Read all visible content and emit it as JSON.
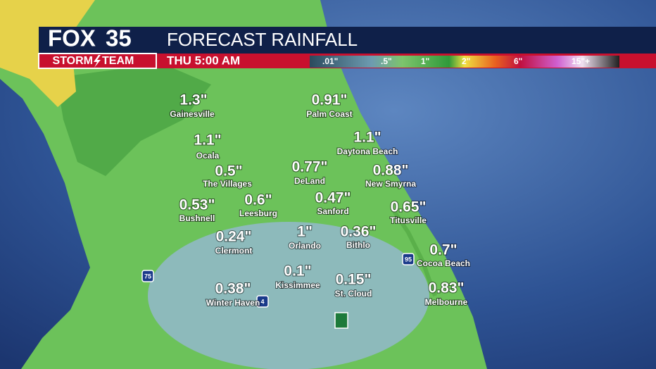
{
  "header": {
    "logo": {
      "brand": "FOX",
      "channel": "35",
      "team_left": "STORM",
      "team_right": "TEAM"
    },
    "title": "FORECAST RAINFALL",
    "time": "THU 5:00 AM",
    "legend": [
      ".01\"",
      ".5\"",
      "1\"",
      "2\"",
      "6\"",
      "15\"+"
    ]
  },
  "cities": [
    {
      "name": "Gainesville",
      "amount": "1.3\""
    },
    {
      "name": "Palm Coast",
      "amount": "0.91\""
    },
    {
      "name": "Ocala",
      "amount": "1.1\""
    },
    {
      "name": "Daytona Beach",
      "amount": "1.1\""
    },
    {
      "name": "The Villages",
      "amount": "0.5\""
    },
    {
      "name": "DeLand",
      "amount": "0.77\""
    },
    {
      "name": "New Smyrna",
      "amount": "0.88\""
    },
    {
      "name": "Bushnell",
      "amount": "0.53\""
    },
    {
      "name": "Leesburg",
      "amount": "0.6\""
    },
    {
      "name": "Sanford",
      "amount": "0.47\""
    },
    {
      "name": "Titusville",
      "amount": "0.65\""
    },
    {
      "name": "Clermont",
      "amount": "0.24\""
    },
    {
      "name": "Orlando",
      "amount": "1\""
    },
    {
      "name": "Bithlo",
      "amount": "0.36\""
    },
    {
      "name": "Cocoa Beach",
      "amount": "0.7\""
    },
    {
      "name": "Kissimmee",
      "amount": "0.1\""
    },
    {
      "name": "St. Cloud",
      "amount": "0.15\""
    },
    {
      "name": "Winter Haven",
      "amount": "0.38\""
    },
    {
      "name": "Melbourne",
      "amount": "0.83\""
    }
  ],
  "highways": [
    "75",
    "4",
    "95"
  ]
}
